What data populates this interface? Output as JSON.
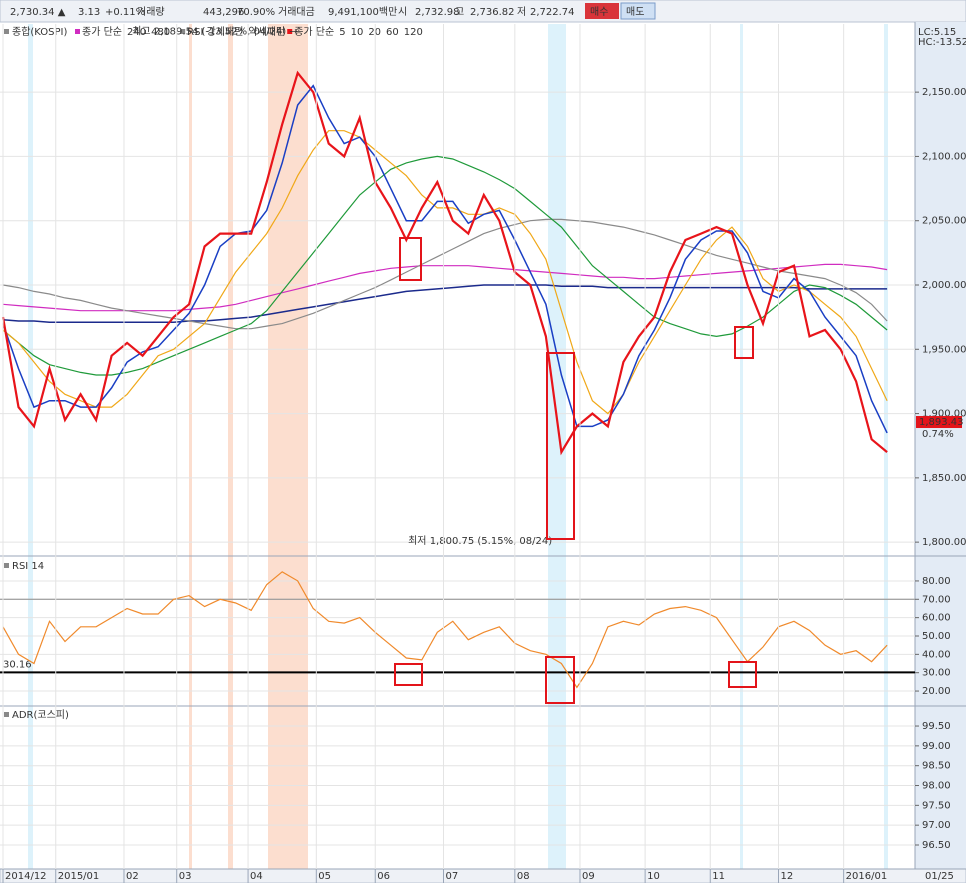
{
  "top_bar": {
    "fields": [
      "2,730.34 ▲",
      "3.13",
      "+0.11%",
      "거래량",
      "443,296",
      "70.90%",
      "거래대금",
      "9,491,100백만",
      "시",
      "2,732.98",
      "고",
      "2,736.82",
      "저",
      "2,722.74",
      "매수",
      "매도"
    ]
  },
  "chart_data": [
    {
      "type": "line",
      "title": "종합(KOSPI)",
      "legend_text": [
        "종가 단순",
        "RSI 강세패턴",
        "약세패턴",
        "종가 단순"
      ],
      "corner_labels": [
        "LC:5.15",
        "HC:-13.52"
      ],
      "annotations": [
        {
          "text": "최고 2,189.54 (-13.52%, 04/24) →",
          "x": 96,
          "y": 2189.54
        },
        {
          "text": "최저 1,800.75 (5.15%, 08/24)",
          "x": 178,
          "y": 1800.75
        }
      ],
      "last_value": {
        "value": 1893.43,
        "label": "1,893.43"
      },
      "last_change": "0.74%",
      "xlim": [
        0,
        294
      ],
      "ylim": [
        1790,
        2203
      ],
      "grid": true,
      "yticks": [
        {
          "value": 1800,
          "label": "1,800.00"
        },
        {
          "value": 1850,
          "label": "1,850.00"
        },
        {
          "value": 1900,
          "label": "1,900.00"
        },
        {
          "value": 1950,
          "label": "1,950.00"
        },
        {
          "value": 2000,
          "label": "2,000.00"
        },
        {
          "value": 2050,
          "label": "2,050.00"
        },
        {
          "value": 2100,
          "label": "2,100.00"
        },
        {
          "value": 2150,
          "label": "2,150.00"
        }
      ],
      "x": [
        0,
        5,
        10,
        15,
        20,
        25,
        30,
        35,
        40,
        45,
        50,
        55,
        60,
        65,
        70,
        75,
        80,
        85,
        90,
        95,
        100,
        105,
        110,
        115,
        120,
        125,
        130,
        135,
        140,
        145,
        150,
        155,
        160,
        165,
        170,
        175,
        180,
        185,
        190,
        195,
        200,
        205,
        210,
        215,
        220,
        225,
        230,
        235,
        240,
        245,
        250,
        255,
        260,
        265,
        270,
        275,
        280,
        285
      ],
      "series": [
        {
          "name": "240",
          "color": "#d02cc0",
          "values": [
            1985,
            1984,
            1983,
            1982,
            1981,
            1980,
            1980,
            1980,
            1980,
            1980,
            1980,
            1980,
            1981,
            1982,
            1983,
            1985,
            1988,
            1991,
            1994,
            1997,
            2000,
            2003,
            2006,
            2009,
            2011,
            2013,
            2014,
            2015,
            2015,
            2015,
            2015,
            2014,
            2013,
            2012,
            2011,
            2010,
            2009,
            2008,
            2007,
            2006,
            2006,
            2005,
            2005,
            2006,
            2007,
            2008,
            2009,
            2010,
            2011,
            2012,
            2013,
            2014,
            2015,
            2016,
            2016,
            2015,
            2014,
            2012
          ]
        },
        {
          "name": "480",
          "color": "#1b2a8c",
          "values": [
            1973,
            1972,
            1972,
            1971,
            1971,
            1971,
            1971,
            1971,
            1971,
            1971,
            1971,
            1971,
            1972,
            1972,
            1973,
            1974,
            1975,
            1977,
            1979,
            1981,
            1983,
            1985,
            1987,
            1989,
            1991,
            1993,
            1995,
            1996,
            1997,
            1998,
            1999,
            2000,
            2000,
            2000,
            2000,
            2000,
            1999,
            1999,
            1999,
            1998,
            1998,
            1998,
            1998,
            1998,
            1998,
            1998,
            1998,
            1998,
            1998,
            1998,
            1998,
            1998,
            1997,
            1997,
            1997,
            1997,
            1997,
            1997
          ]
        },
        {
          "name": "120",
          "color": "#8a8a8a",
          "values": [
            2000,
            1998,
            1995,
            1993,
            1990,
            1988,
            1985,
            1982,
            1980,
            1978,
            1976,
            1974,
            1972,
            1970,
            1968,
            1966,
            1966,
            1968,
            1970,
            1974,
            1978,
            1983,
            1988,
            1993,
            1998,
            2004,
            2010,
            2016,
            2022,
            2028,
            2034,
            2040,
            2044,
            2047,
            2050,
            2051,
            2051,
            2050,
            2049,
            2047,
            2045,
            2042,
            2039,
            2035,
            2031,
            2027,
            2023,
            2020,
            2017,
            2014,
            2011,
            2009,
            2007,
            2005,
            2000,
            1994,
            1985,
            1972
          ]
        },
        {
          "name": "60",
          "color": "#1f9a3a",
          "values": [
            1965,
            1955,
            1945,
            1938,
            1935,
            1932,
            1930,
            1930,
            1932,
            1935,
            1940,
            1945,
            1950,
            1955,
            1960,
            1965,
            1970,
            1980,
            1995,
            2010,
            2025,
            2040,
            2055,
            2070,
            2080,
            2090,
            2095,
            2098,
            2100,
            2098,
            2093,
            2088,
            2082,
            2075,
            2065,
            2055,
            2045,
            2030,
            2015,
            2005,
            1995,
            1985,
            1975,
            1970,
            1966,
            1962,
            1960,
            1962,
            1968,
            1975,
            1985,
            1995,
            2000,
            1998,
            1992,
            1985,
            1975,
            1965
          ]
        },
        {
          "name": "20",
          "color": "#f0a818",
          "values": [
            1965,
            1955,
            1940,
            1925,
            1915,
            1910,
            1905,
            1905,
            1915,
            1930,
            1945,
            1950,
            1960,
            1970,
            1990,
            2010,
            2025,
            2040,
            2060,
            2085,
            2105,
            2120,
            2120,
            2115,
            2105,
            2095,
            2085,
            2070,
            2060,
            2060,
            2055,
            2055,
            2060,
            2055,
            2040,
            2020,
            1980,
            1940,
            1910,
            1900,
            1915,
            1940,
            1960,
            1980,
            2000,
            2020,
            2035,
            2045,
            2030,
            2005,
            1995,
            2000,
            1995,
            1985,
            1975,
            1960,
            1935,
            1910
          ]
        },
        {
          "name": "10",
          "color": "#1a3fc4",
          "values": [
            1970,
            1935,
            1905,
            1910,
            1910,
            1905,
            1905,
            1920,
            1940,
            1948,
            1952,
            1965,
            1978,
            2000,
            2030,
            2040,
            2042,
            2058,
            2095,
            2140,
            2155,
            2130,
            2110,
            2115,
            2100,
            2075,
            2050,
            2050,
            2065,
            2065,
            2048,
            2055,
            2058,
            2035,
            2010,
            1985,
            1930,
            1890,
            1890,
            1895,
            1915,
            1945,
            1965,
            1990,
            2020,
            2035,
            2042,
            2042,
            2025,
            1995,
            1990,
            2005,
            1995,
            1975,
            1960,
            1945,
            1910,
            1885
          ]
        },
        {
          "name": "5",
          "color": "#e8141a",
          "values": [
            1975,
            1905,
            1890,
            1935,
            1895,
            1915,
            1895,
            1945,
            1955,
            1945,
            1960,
            1975,
            1985,
            2030,
            2040,
            2040,
            2040,
            2080,
            2125,
            2165,
            2150,
            2110,
            2100,
            2130,
            2080,
            2060,
            2035,
            2060,
            2080,
            2050,
            2040,
            2070,
            2050,
            2010,
            2000,
            1960,
            1870,
            1890,
            1900,
            1890,
            1940,
            1960,
            1975,
            2010,
            2035,
            2040,
            2045,
            2040,
            2000,
            1970,
            2010,
            2015,
            1960,
            1965,
            1950,
            1925,
            1880,
            1870
          ]
        }
      ]
    },
    {
      "type": "line",
      "title": "RSI 14",
      "xlim": [
        0,
        294
      ],
      "ylim": [
        12.4,
        92.5
      ],
      "grid": true,
      "guide_lines": [
        70
      ],
      "signal_line": {
        "value": 30.16,
        "label": "30.16"
      },
      "yticks": [
        {
          "value": 20,
          "label": "20.00"
        },
        {
          "value": 30,
          "label": "30.00"
        },
        {
          "value": 40,
          "label": "40.00"
        },
        {
          "value": 50,
          "label": "50.00"
        },
        {
          "value": 60,
          "label": "60.00"
        },
        {
          "value": 70,
          "label": "70.00"
        },
        {
          "value": 80,
          "label": "80.00"
        }
      ],
      "x": [
        0,
        5,
        10,
        15,
        20,
        25,
        30,
        35,
        40,
        45,
        50,
        55,
        60,
        65,
        70,
        75,
        80,
        85,
        90,
        95,
        100,
        105,
        110,
        115,
        120,
        125,
        130,
        135,
        140,
        145,
        150,
        155,
        160,
        165,
        170,
        175,
        180,
        185,
        190,
        195,
        200,
        205,
        210,
        215,
        220,
        225,
        230,
        235,
        240,
        245,
        250,
        255,
        260,
        265,
        270,
        275,
        280,
        285
      ],
      "series": [
        {
          "name": "RSI 14",
          "color": "#f08a2c",
          "values": [
            55,
            40,
            35,
            58,
            47,
            55,
            55,
            60,
            65,
            62,
            62,
            70,
            72,
            66,
            70,
            68,
            64,
            78,
            85,
            80,
            65,
            58,
            57,
            60,
            52,
            45,
            38,
            37,
            52,
            58,
            48,
            52,
            55,
            46,
            42,
            40,
            35,
            22,
            35,
            55,
            58,
            56,
            62,
            65,
            66,
            64,
            60,
            48,
            36,
            44,
            55,
            58,
            53,
            45,
            40,
            42,
            36,
            45
          ]
        }
      ]
    },
    {
      "type": "line",
      "title": "ADR(코스피)",
      "xlim": [
        0,
        294
      ],
      "ylim": [
        95.92,
        99.98
      ],
      "grid": true,
      "yticks": [
        {
          "value": 96.5,
          "label": "96.50"
        },
        {
          "value": 97,
          "label": "97.00"
        },
        {
          "value": 97.5,
          "label": "97.50"
        },
        {
          "value": 98,
          "label": "98.00"
        },
        {
          "value": 98.5,
          "label": "98.50"
        },
        {
          "value": 99,
          "label": "99.00"
        },
        {
          "value": 99.5,
          "label": "99.50"
        }
      ],
      "xticks": [
        {
          "value": 0,
          "label": "2014/12"
        },
        {
          "value": 17,
          "label": "2015/01"
        },
        {
          "value": 39,
          "label": "02"
        },
        {
          "value": 56,
          "label": "03"
        },
        {
          "value": 79,
          "label": "04"
        },
        {
          "value": 101,
          "label": "05"
        },
        {
          "value": 120,
          "label": "06"
        },
        {
          "value": 142,
          "label": "07"
        },
        {
          "value": 165,
          "label": "08"
        },
        {
          "value": 186,
          "label": "09"
        },
        {
          "value": 207,
          "label": "10"
        },
        {
          "value": 228,
          "label": "11"
        },
        {
          "value": 250,
          "label": "12"
        },
        {
          "value": 271,
          "label": "2016/01"
        }
      ],
      "current_date": "01/25"
    }
  ]
}
